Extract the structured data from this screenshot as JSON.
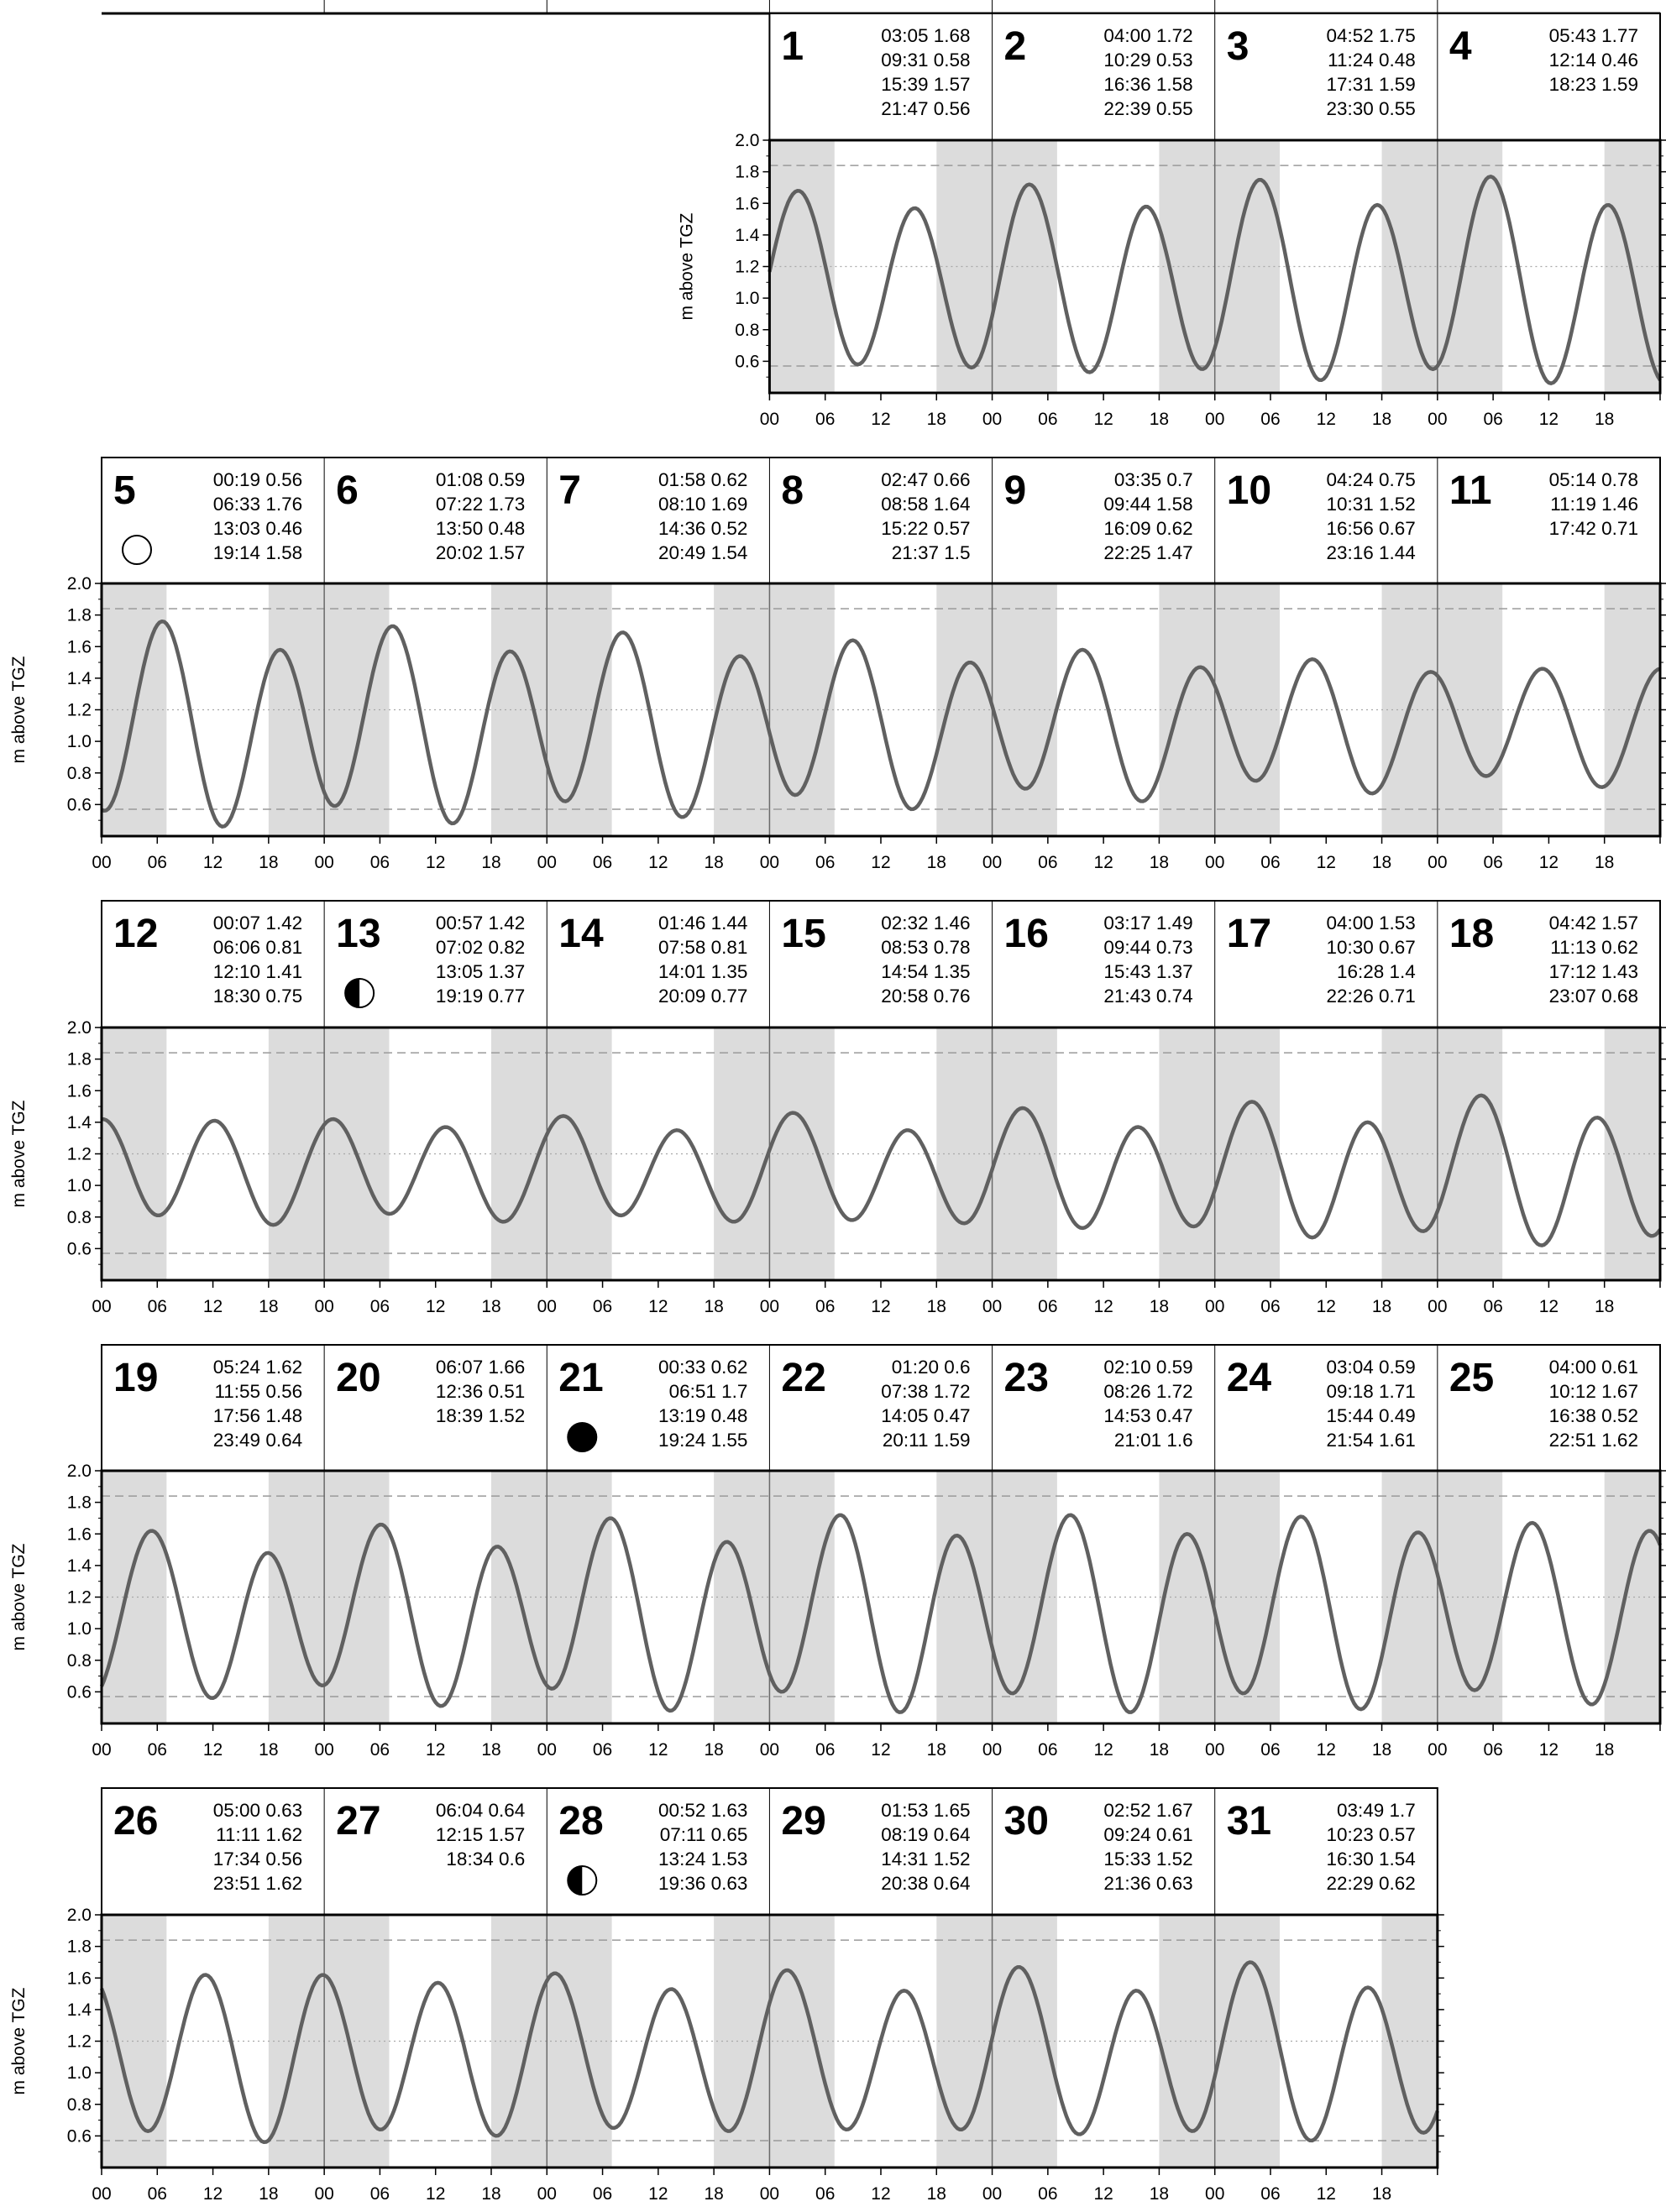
{
  "chart_data": {
    "type": "line",
    "ylabel": "m above TGZ",
    "ylim": [
      0.4,
      2.0
    ],
    "yticks": [
      "2.0",
      "1.8",
      "1.6",
      "1.4",
      "1.2",
      "1.0",
      "0.8",
      "0.6"
    ],
    "xtick_labels": [
      "00",
      "06",
      "12",
      "18"
    ],
    "reference_levels": {
      "dashed_high": 1.84,
      "dashed_low": 0.57,
      "dotted_mid": 1.2
    },
    "shading": "night hours shaded grey (approx. 18:00–07:00)",
    "weeks": [
      {
        "start_col": 3,
        "days": [
          {
            "day": "1",
            "moon": "",
            "extrema": [
              [
                "03:05",
                "1.68"
              ],
              [
                "09:31",
                "0.58"
              ],
              [
                "15:39",
                "1.57"
              ],
              [
                "21:47",
                "0.56"
              ]
            ]
          },
          {
            "day": "2",
            "moon": "",
            "extrema": [
              [
                "04:00",
                "1.72"
              ],
              [
                "10:29",
                "0.53"
              ],
              [
                "16:36",
                "1.58"
              ],
              [
                "22:39",
                "0.55"
              ]
            ]
          },
          {
            "day": "3",
            "moon": "",
            "extrema": [
              [
                "04:52",
                "1.75"
              ],
              [
                "11:24",
                "0.48"
              ],
              [
                "17:31",
                "1.59"
              ],
              [
                "23:30",
                "0.55"
              ]
            ]
          },
          {
            "day": "4",
            "moon": "",
            "extrema": [
              [
                "05:43",
                "1.77"
              ],
              [
                "12:14",
                "0.46"
              ],
              [
                "18:23",
                "1.59"
              ]
            ]
          }
        ]
      },
      {
        "start_col": 0,
        "days": [
          {
            "day": "5",
            "moon": "full",
            "extrema": [
              [
                "00:19",
                "0.56"
              ],
              [
                "06:33",
                "1.76"
              ],
              [
                "13:03",
                "0.46"
              ],
              [
                "19:14",
                "1.58"
              ]
            ]
          },
          {
            "day": "6",
            "moon": "",
            "extrema": [
              [
                "01:08",
                "0.59"
              ],
              [
                "07:22",
                "1.73"
              ],
              [
                "13:50",
                "0.48"
              ],
              [
                "20:02",
                "1.57"
              ]
            ]
          },
          {
            "day": "7",
            "moon": "",
            "extrema": [
              [
                "01:58",
                "0.62"
              ],
              [
                "08:10",
                "1.69"
              ],
              [
                "14:36",
                "0.52"
              ],
              [
                "20:49",
                "1.54"
              ]
            ]
          },
          {
            "day": "8",
            "moon": "",
            "extrema": [
              [
                "02:47",
                "0.66"
              ],
              [
                "08:58",
                "1.64"
              ],
              [
                "15:22",
                "0.57"
              ],
              [
                "21:37",
                "1.5"
              ]
            ]
          },
          {
            "day": "9",
            "moon": "",
            "extrema": [
              [
                "03:35",
                "0.7"
              ],
              [
                "09:44",
                "1.58"
              ],
              [
                "16:09",
                "0.62"
              ],
              [
                "22:25",
                "1.47"
              ]
            ]
          },
          {
            "day": "10",
            "moon": "",
            "extrema": [
              [
                "04:24",
                "0.75"
              ],
              [
                "10:31",
                "1.52"
              ],
              [
                "16:56",
                "0.67"
              ],
              [
                "23:16",
                "1.44"
              ]
            ]
          },
          {
            "day": "11",
            "moon": "",
            "extrema": [
              [
                "05:14",
                "0.78"
              ],
              [
                "11:19",
                "1.46"
              ],
              [
                "17:42",
                "0.71"
              ]
            ]
          }
        ]
      },
      {
        "start_col": 0,
        "days": [
          {
            "day": "12",
            "moon": "",
            "extrema": [
              [
                "00:07",
                "1.42"
              ],
              [
                "06:06",
                "0.81"
              ],
              [
                "12:10",
                "1.41"
              ],
              [
                "18:30",
                "0.75"
              ]
            ]
          },
          {
            "day": "13",
            "moon": "quarter",
            "extrema": [
              [
                "00:57",
                "1.42"
              ],
              [
                "07:02",
                "0.82"
              ],
              [
                "13:05",
                "1.37"
              ],
              [
                "19:19",
                "0.77"
              ]
            ]
          },
          {
            "day": "14",
            "moon": "",
            "extrema": [
              [
                "01:46",
                "1.44"
              ],
              [
                "07:58",
                "0.81"
              ],
              [
                "14:01",
                "1.35"
              ],
              [
                "20:09",
                "0.77"
              ]
            ]
          },
          {
            "day": "15",
            "moon": "",
            "extrema": [
              [
                "02:32",
                "1.46"
              ],
              [
                "08:53",
                "0.78"
              ],
              [
                "14:54",
                "1.35"
              ],
              [
                "20:58",
                "0.76"
              ]
            ]
          },
          {
            "day": "16",
            "moon": "",
            "extrema": [
              [
                "03:17",
                "1.49"
              ],
              [
                "09:44",
                "0.73"
              ],
              [
                "15:43",
                "1.37"
              ],
              [
                "21:43",
                "0.74"
              ]
            ]
          },
          {
            "day": "17",
            "moon": "",
            "extrema": [
              [
                "04:00",
                "1.53"
              ],
              [
                "10:30",
                "0.67"
              ],
              [
                "16:28",
                "1.4"
              ],
              [
                "22:26",
                "0.71"
              ]
            ]
          },
          {
            "day": "18",
            "moon": "",
            "extrema": [
              [
                "04:42",
                "1.57"
              ],
              [
                "11:13",
                "0.62"
              ],
              [
                "17:12",
                "1.43"
              ],
              [
                "23:07",
                "0.68"
              ]
            ]
          }
        ]
      },
      {
        "start_col": 0,
        "days": [
          {
            "day": "19",
            "moon": "",
            "extrema": [
              [
                "05:24",
                "1.62"
              ],
              [
                "11:55",
                "0.56"
              ],
              [
                "17:56",
                "1.48"
              ],
              [
                "23:49",
                "0.64"
              ]
            ]
          },
          {
            "day": "20",
            "moon": "",
            "extrema": [
              [
                "06:07",
                "1.66"
              ],
              [
                "12:36",
                "0.51"
              ],
              [
                "18:39",
                "1.52"
              ]
            ]
          },
          {
            "day": "21",
            "moon": "new",
            "extrema": [
              [
                "00:33",
                "0.62"
              ],
              [
                "06:51",
                "1.7"
              ],
              [
                "13:19",
                "0.48"
              ],
              [
                "19:24",
                "1.55"
              ]
            ]
          },
          {
            "day": "22",
            "moon": "",
            "extrema": [
              [
                "01:20",
                "0.6"
              ],
              [
                "07:38",
                "1.72"
              ],
              [
                "14:05",
                "0.47"
              ],
              [
                "20:11",
                "1.59"
              ]
            ]
          },
          {
            "day": "23",
            "moon": "",
            "extrema": [
              [
                "02:10",
                "0.59"
              ],
              [
                "08:26",
                "1.72"
              ],
              [
                "14:53",
                "0.47"
              ],
              [
                "21:01",
                "1.6"
              ]
            ]
          },
          {
            "day": "24",
            "moon": "",
            "extrema": [
              [
                "03:04",
                "0.59"
              ],
              [
                "09:18",
                "1.71"
              ],
              [
                "15:44",
                "0.49"
              ],
              [
                "21:54",
                "1.61"
              ]
            ]
          },
          {
            "day": "25",
            "moon": "",
            "extrema": [
              [
                "04:00",
                "0.61"
              ],
              [
                "10:12",
                "1.67"
              ],
              [
                "16:38",
                "0.52"
              ],
              [
                "22:51",
                "1.62"
              ]
            ]
          }
        ]
      },
      {
        "start_col": 0,
        "days": [
          {
            "day": "26",
            "moon": "",
            "extrema": [
              [
                "05:00",
                "0.63"
              ],
              [
                "11:11",
                "1.62"
              ],
              [
                "17:34",
                "0.56"
              ],
              [
                "23:51",
                "1.62"
              ]
            ]
          },
          {
            "day": "27",
            "moon": "",
            "extrema": [
              [
                "06:04",
                "0.64"
              ],
              [
                "12:15",
                "1.57"
              ],
              [
                "18:34",
                "0.6"
              ]
            ]
          },
          {
            "day": "28",
            "moon": "quarter",
            "extrema": [
              [
                "00:52",
                "1.63"
              ],
              [
                "07:11",
                "0.65"
              ],
              [
                "13:24",
                "1.53"
              ],
              [
                "19:36",
                "0.63"
              ]
            ]
          },
          {
            "day": "29",
            "moon": "",
            "extrema": [
              [
                "01:53",
                "1.65"
              ],
              [
                "08:19",
                "0.64"
              ],
              [
                "14:31",
                "1.52"
              ],
              [
                "20:38",
                "0.64"
              ]
            ]
          },
          {
            "day": "30",
            "moon": "",
            "extrema": [
              [
                "02:52",
                "1.67"
              ],
              [
                "09:24",
                "0.61"
              ],
              [
                "15:33",
                "1.52"
              ],
              [
                "21:36",
                "0.63"
              ]
            ]
          },
          {
            "day": "31",
            "moon": "",
            "extrema": [
              [
                "03:49",
                "1.7"
              ],
              [
                "10:23",
                "0.57"
              ],
              [
                "16:30",
                "1.54"
              ],
              [
                "22:29",
                "0.62"
              ]
            ]
          }
        ]
      }
    ]
  }
}
